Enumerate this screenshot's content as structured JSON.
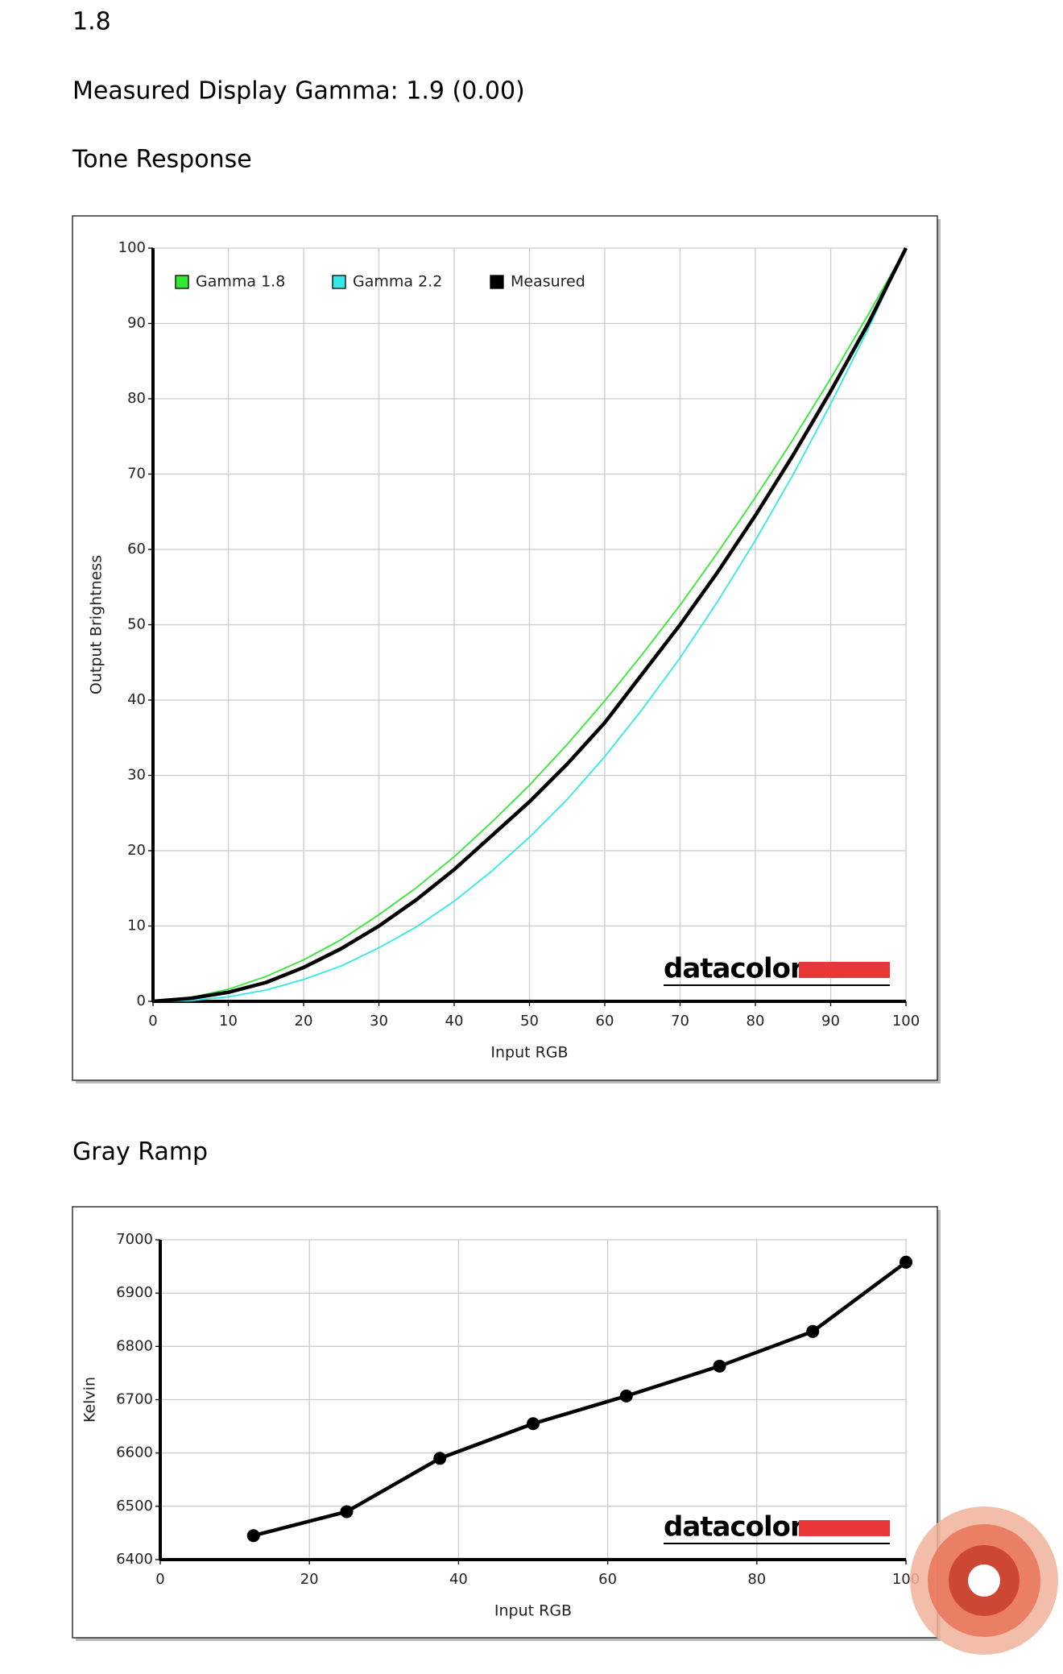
{
  "header": {
    "lines": [
      "1.8",
      "Measured Display Gamma: 1.9 (0.00)"
    ]
  },
  "chart_data": [
    {
      "type": "line",
      "title": "Tone Response",
      "xlabel": "Input RGB",
      "ylabel": "Output Brightness",
      "watermark": "datacolor",
      "x": [
        0,
        5,
        10,
        15,
        20,
        25,
        30,
        35,
        40,
        45,
        50,
        55,
        60,
        65,
        70,
        75,
        80,
        85,
        90,
        95,
        100
      ],
      "series": [
        {
          "name": "Gamma 1.8",
          "color": "#33e833",
          "values": [
            0,
            0.5,
            1.6,
            3.3,
            5.5,
            8.2,
            11.5,
            15.1,
            19.2,
            23.8,
            28.7,
            34.1,
            39.9,
            46.1,
            52.6,
            59.6,
            66.9,
            74.6,
            82.7,
            91.2,
            100
          ]
        },
        {
          "name": "Gamma 2.2",
          "color": "#33e8e8",
          "values": [
            0,
            0.1,
            0.6,
            1.5,
            2.9,
            4.7,
            7.1,
            9.9,
            13.3,
            17.3,
            21.8,
            26.8,
            32.5,
            38.8,
            45.6,
            53.1,
            61.2,
            69.9,
            79.3,
            89.3,
            100
          ]
        },
        {
          "name": "Measured",
          "color": "#000000",
          "values": [
            0,
            0.4,
            1.2,
            2.5,
            4.5,
            7,
            10,
            13.5,
            17.5,
            22,
            26.5,
            31.5,
            37,
            43.5,
            50,
            57,
            64.5,
            72.5,
            81,
            90,
            100
          ]
        }
      ],
      "xlim": [
        0,
        100
      ],
      "xticks": [
        0,
        10,
        20,
        30,
        40,
        50,
        60,
        70,
        80,
        90,
        100
      ],
      "ylim": [
        0,
        100
      ],
      "yticks": [
        0,
        10,
        20,
        30,
        40,
        50,
        60,
        70,
        80,
        90,
        100
      ],
      "grid": true,
      "legend": "top-left",
      "markers": false
    },
    {
      "type": "line",
      "title": "Gray Ramp",
      "xlabel": "Input RGB",
      "ylabel": "Kelvin",
      "watermark": "datacolor",
      "x": [
        12.5,
        25,
        37.5,
        50,
        62.5,
        75,
        87.5,
        100
      ],
      "series": [
        {
          "color": "#000000",
          "values": [
            6445,
            6490,
            6590,
            6655,
            6707,
            6763,
            6828,
            6958
          ]
        }
      ],
      "xlim": [
        0,
        100
      ],
      "xticks": [
        0,
        20,
        40,
        60,
        80,
        100
      ],
      "ylim": [
        6400,
        7000
      ],
      "yticks": [
        6400,
        6500,
        6600,
        6700,
        6800,
        6900,
        7000
      ],
      "grid": true,
      "markers": true
    }
  ]
}
